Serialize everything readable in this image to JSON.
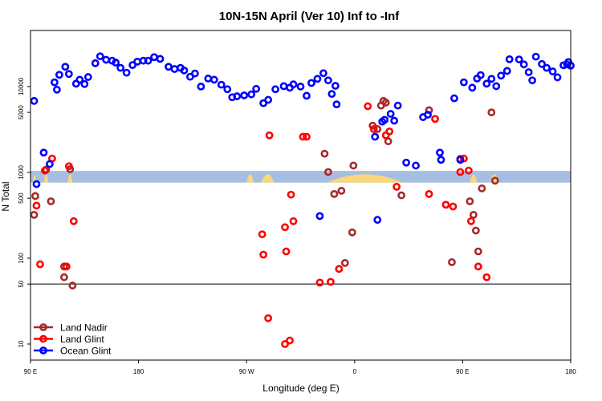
{
  "chart_data": {
    "type": "scatter",
    "title": "10N-15N April (Ver 10)   Inf to -Inf",
    "xlabel": "Longitude (deg E)",
    "ylabel": "N Total",
    "x_scale": "linear",
    "y_scale": "log",
    "xlim": [
      90,
      540
    ],
    "ylim": [
      6.5,
      45000
    ],
    "x_ticks": [
      {
        "value": 90,
        "label": "90 E"
      },
      {
        "value": 180,
        "label": "180"
      },
      {
        "value": 270,
        "label": "90 W"
      },
      {
        "value": 360,
        "label": "0"
      },
      {
        "value": 450,
        "label": "90 E"
      },
      {
        "value": 540,
        "label": "180"
      }
    ],
    "y_ticks": [
      {
        "value": 10,
        "label": "10"
      },
      {
        "value": 50,
        "label": "50"
      },
      {
        "value": 100,
        "label": "100"
      },
      {
        "value": 500,
        "label": "500"
      },
      {
        "value": 1000,
        "label": "1000"
      },
      {
        "value": 5000,
        "label": "5000"
      },
      {
        "value": 10000,
        "label": "10000"
      }
    ],
    "reference_line": {
      "y": 50,
      "color": "#000000"
    },
    "legend": {
      "placement": "bottom-left"
    },
    "colors": {
      "land_nadir": "#A52A2A",
      "land_glint": "#FF0000",
      "ocean_glint": "#0000FF",
      "land_strip": "#A7BEE3",
      "land_fill": "#FBD77A"
    },
    "series": [
      {
        "name": "Land Nadir",
        "color": "#A52A2A",
        "points": [
          [
            93,
            320
          ],
          [
            94,
            530
          ],
          [
            103,
            1080
          ],
          [
            107,
            460
          ],
          [
            123,
            1090
          ],
          [
            125,
            48
          ],
          [
            118,
            60
          ],
          [
            118,
            80
          ],
          [
            335,
            1650
          ],
          [
            338,
            1010
          ],
          [
            343,
            560
          ],
          [
            349,
            610
          ],
          [
            352,
            88
          ],
          [
            358,
            200
          ],
          [
            359,
            1200
          ],
          [
            375,
            3500
          ],
          [
            379,
            3200
          ],
          [
            382,
            6000
          ],
          [
            384,
            6800
          ],
          [
            386,
            6500
          ],
          [
            388,
            2300
          ],
          [
            399,
            540
          ],
          [
            422,
            5300
          ],
          [
            441,
            90
          ],
          [
            448,
            1440
          ],
          [
            456,
            460
          ],
          [
            459,
            320
          ],
          [
            461,
            210
          ],
          [
            463,
            120
          ],
          [
            466,
            650
          ],
          [
            474,
            5000
          ],
          [
            477,
            800
          ]
        ]
      },
      {
        "name": "Land Glint",
        "color": "#FF0000",
        "points": [
          [
            95,
            410
          ],
          [
            98,
            85
          ],
          [
            102,
            1050
          ],
          [
            108,
            1450
          ],
          [
            122,
            1180
          ],
          [
            126,
            270
          ],
          [
            120,
            80
          ],
          [
            289,
            2700
          ],
          [
            283,
            190
          ],
          [
            284,
            110
          ],
          [
            302,
            230
          ],
          [
            303,
            120
          ],
          [
            307,
            550
          ],
          [
            309,
            270
          ],
          [
            288,
            20
          ],
          [
            302,
            10
          ],
          [
            306,
            11
          ],
          [
            317,
            2600
          ],
          [
            320,
            2600
          ],
          [
            331,
            52
          ],
          [
            340,
            53
          ],
          [
            347,
            75
          ],
          [
            371,
            5900
          ],
          [
            376,
            3200
          ],
          [
            386,
            2700
          ],
          [
            389,
            3000
          ],
          [
            395,
            680
          ],
          [
            422,
            560
          ],
          [
            427,
            4200
          ],
          [
            436,
            420
          ],
          [
            442,
            400
          ],
          [
            448,
            1010
          ],
          [
            451,
            1450
          ],
          [
            455,
            1050
          ],
          [
            457,
            270
          ],
          [
            463,
            80
          ],
          [
            470,
            60
          ]
        ]
      },
      {
        "name": "Ocean Glint",
        "color": "#0000FF",
        "points": [
          [
            93,
            6800
          ],
          [
            95,
            730
          ],
          [
            101,
            1700
          ],
          [
            106,
            1250
          ],
          [
            110,
            11200
          ],
          [
            112,
            9200
          ],
          [
            114,
            13700
          ],
          [
            119,
            17000
          ],
          [
            122,
            14000
          ],
          [
            128,
            10800
          ],
          [
            131,
            12000
          ],
          [
            135,
            10700
          ],
          [
            138,
            12900
          ],
          [
            144,
            18700
          ],
          [
            148,
            22500
          ],
          [
            153,
            20500
          ],
          [
            158,
            20000
          ],
          [
            161,
            19000
          ],
          [
            165,
            16500
          ],
          [
            170,
            14500
          ],
          [
            175,
            17800
          ],
          [
            179,
            19500
          ],
          [
            184,
            20000
          ],
          [
            188,
            20000
          ],
          [
            193,
            22000
          ],
          [
            198,
            21000
          ],
          [
            205,
            17000
          ],
          [
            210,
            16000
          ],
          [
            215,
            16500
          ],
          [
            218,
            15400
          ],
          [
            223,
            13000
          ],
          [
            227,
            14200
          ],
          [
            232,
            10000
          ],
          [
            238,
            12400
          ],
          [
            243,
            12000
          ],
          [
            249,
            10500
          ],
          [
            254,
            9300
          ],
          [
            258,
            7500
          ],
          [
            262,
            7700
          ],
          [
            268,
            7900
          ],
          [
            274,
            8100
          ],
          [
            278,
            9400
          ],
          [
            284,
            6400
          ],
          [
            288,
            7000
          ],
          [
            294,
            9300
          ],
          [
            301,
            10100
          ],
          [
            306,
            9700
          ],
          [
            309,
            10600
          ],
          [
            315,
            10000
          ],
          [
            320,
            7800
          ],
          [
            324,
            11000
          ],
          [
            329,
            12300
          ],
          [
            334,
            14300
          ],
          [
            338,
            11800
          ],
          [
            341,
            8200
          ],
          [
            344,
            10200
          ],
          [
            345,
            6200
          ],
          [
            331,
            310
          ],
          [
            377,
            2600
          ],
          [
            379,
            280
          ],
          [
            383,
            3900
          ],
          [
            385,
            4100
          ],
          [
            390,
            4800
          ],
          [
            393,
            4000
          ],
          [
            396,
            6000
          ],
          [
            403,
            1300
          ],
          [
            411,
            1200
          ],
          [
            417,
            4400
          ],
          [
            421,
            4700
          ],
          [
            431,
            1700
          ],
          [
            432,
            1400
          ],
          [
            443,
            7300
          ],
          [
            448,
            1400
          ],
          [
            451,
            11200
          ],
          [
            458,
            9700
          ],
          [
            462,
            12400
          ],
          [
            465,
            13600
          ],
          [
            470,
            10800
          ],
          [
            474,
            12300
          ],
          [
            478,
            10100
          ],
          [
            482,
            13400
          ],
          [
            487,
            15200
          ],
          [
            489,
            20800
          ],
          [
            497,
            20700
          ],
          [
            501,
            18100
          ],
          [
            505,
            14700
          ],
          [
            508,
            11800
          ],
          [
            511,
            22300
          ],
          [
            516,
            18300
          ],
          [
            520,
            16500
          ],
          [
            525,
            15000
          ],
          [
            529,
            12800
          ],
          [
            534,
            17700
          ],
          [
            537,
            18100
          ],
          [
            538,
            19300
          ],
          [
            540,
            17500
          ]
        ]
      }
    ],
    "land_band": {
      "y_center": 900,
      "y_range": [
        760,
        1040
      ],
      "land_segments": [
        [
          92,
          95
        ],
        [
          101,
          105
        ],
        [
          121,
          125
        ],
        [
          270,
          276
        ],
        [
          282,
          293
        ],
        [
          337,
          400
        ],
        [
          456,
          462
        ],
        [
          473,
          480
        ]
      ]
    }
  }
}
